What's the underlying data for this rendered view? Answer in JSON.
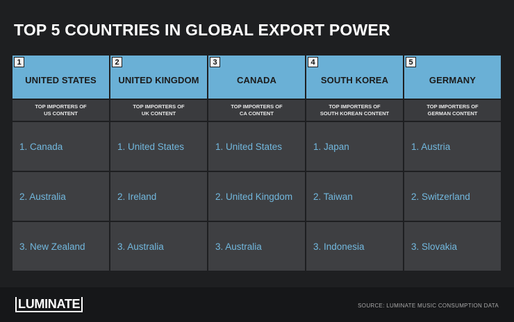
{
  "title": "TOP 5 COUNTRIES IN GLOBAL EXPORT POWER",
  "columns": [
    {
      "rank": "1",
      "country": "UNITED STATES",
      "subtitle_line1": "TOP IMPORTERS OF",
      "subtitle_line2": "US CONTENT",
      "importers": [
        "1. Canada",
        "2. Australia",
        "3. New Zealand"
      ]
    },
    {
      "rank": "2",
      "country": "UNITED KINGDOM",
      "subtitle_line1": "TOP IMPORTERS OF",
      "subtitle_line2": "UK CONTENT",
      "importers": [
        "1. United States",
        "2. Ireland",
        "3. Australia"
      ]
    },
    {
      "rank": "3",
      "country": "CANADA",
      "subtitle_line1": "TOP IMPORTERS OF",
      "subtitle_line2": "CA CONTENT",
      "importers": [
        "1. United States",
        "2. United Kingdom",
        "3. Australia"
      ]
    },
    {
      "rank": "4",
      "country": "SOUTH KOREA",
      "subtitle_line1": "TOP IMPORTERS OF",
      "subtitle_line2": "SOUTH KOREAN CONTENT",
      "importers": [
        "1. Japan",
        "2. Taiwan",
        "3. Indonesia"
      ]
    },
    {
      "rank": "5",
      "country": "GERMANY",
      "subtitle_line1": "TOP IMPORTERS OF",
      "subtitle_line2": "GERMAN CONTENT",
      "importers": [
        "1. Austria",
        "2. Switzerland",
        "3. Slovakia"
      ]
    }
  ],
  "footer": {
    "logo": "LUMINATE",
    "source": "SOURCE: LUMINATE MUSIC CONSUMPTION DATA"
  },
  "colors": {
    "background": "#1e1f21",
    "header": "#6ab0d6",
    "cell": "#3e3f42",
    "accent_text": "#72b8de"
  }
}
